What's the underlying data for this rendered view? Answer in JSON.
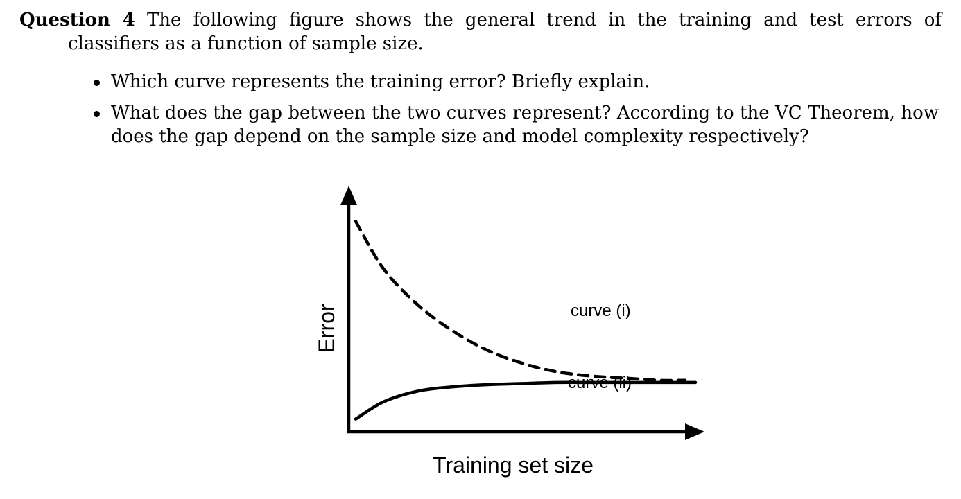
{
  "question": {
    "label": "Question 4",
    "intro": "The following figure shows the general trend in the training and test errors of classifiers as a function of sample size.",
    "bullets": [
      "Which curve represents the training error? Briefly explain.",
      "What does the gap between the two curves represent? According to the VC Theorem, how does the gap depend on the sample size and model complexity respectively?"
    ]
  },
  "figure": {
    "ylabel": "Error",
    "xlabel": "Training set size",
    "curve_i_label": "curve (i)",
    "curve_ii_label": "curve (ii)"
  },
  "chart_data": {
    "type": "line",
    "title": "",
    "xlabel": "Training set size",
    "ylabel": "Error",
    "xlim": [
      0,
      10
    ],
    "ylim": [
      0,
      10
    ],
    "grid": false,
    "series": [
      {
        "name": "curve (i)",
        "style": "dashed",
        "x": [
          0.2,
          1,
          2,
          3,
          4,
          5,
          6,
          7,
          8,
          9,
          9.7
        ],
        "y": [
          9.6,
          7.4,
          5.7,
          4.5,
          3.6,
          3.0,
          2.6,
          2.4,
          2.3,
          2.2,
          2.2
        ]
      },
      {
        "name": "curve (ii)",
        "style": "solid",
        "x": [
          0.2,
          1,
          2,
          3,
          4,
          5,
          6,
          7,
          8,
          9,
          10
        ],
        "y": [
          0.4,
          1.2,
          1.7,
          1.9,
          2.0,
          2.05,
          2.1,
          2.1,
          2.1,
          2.1,
          2.1
        ]
      }
    ]
  }
}
